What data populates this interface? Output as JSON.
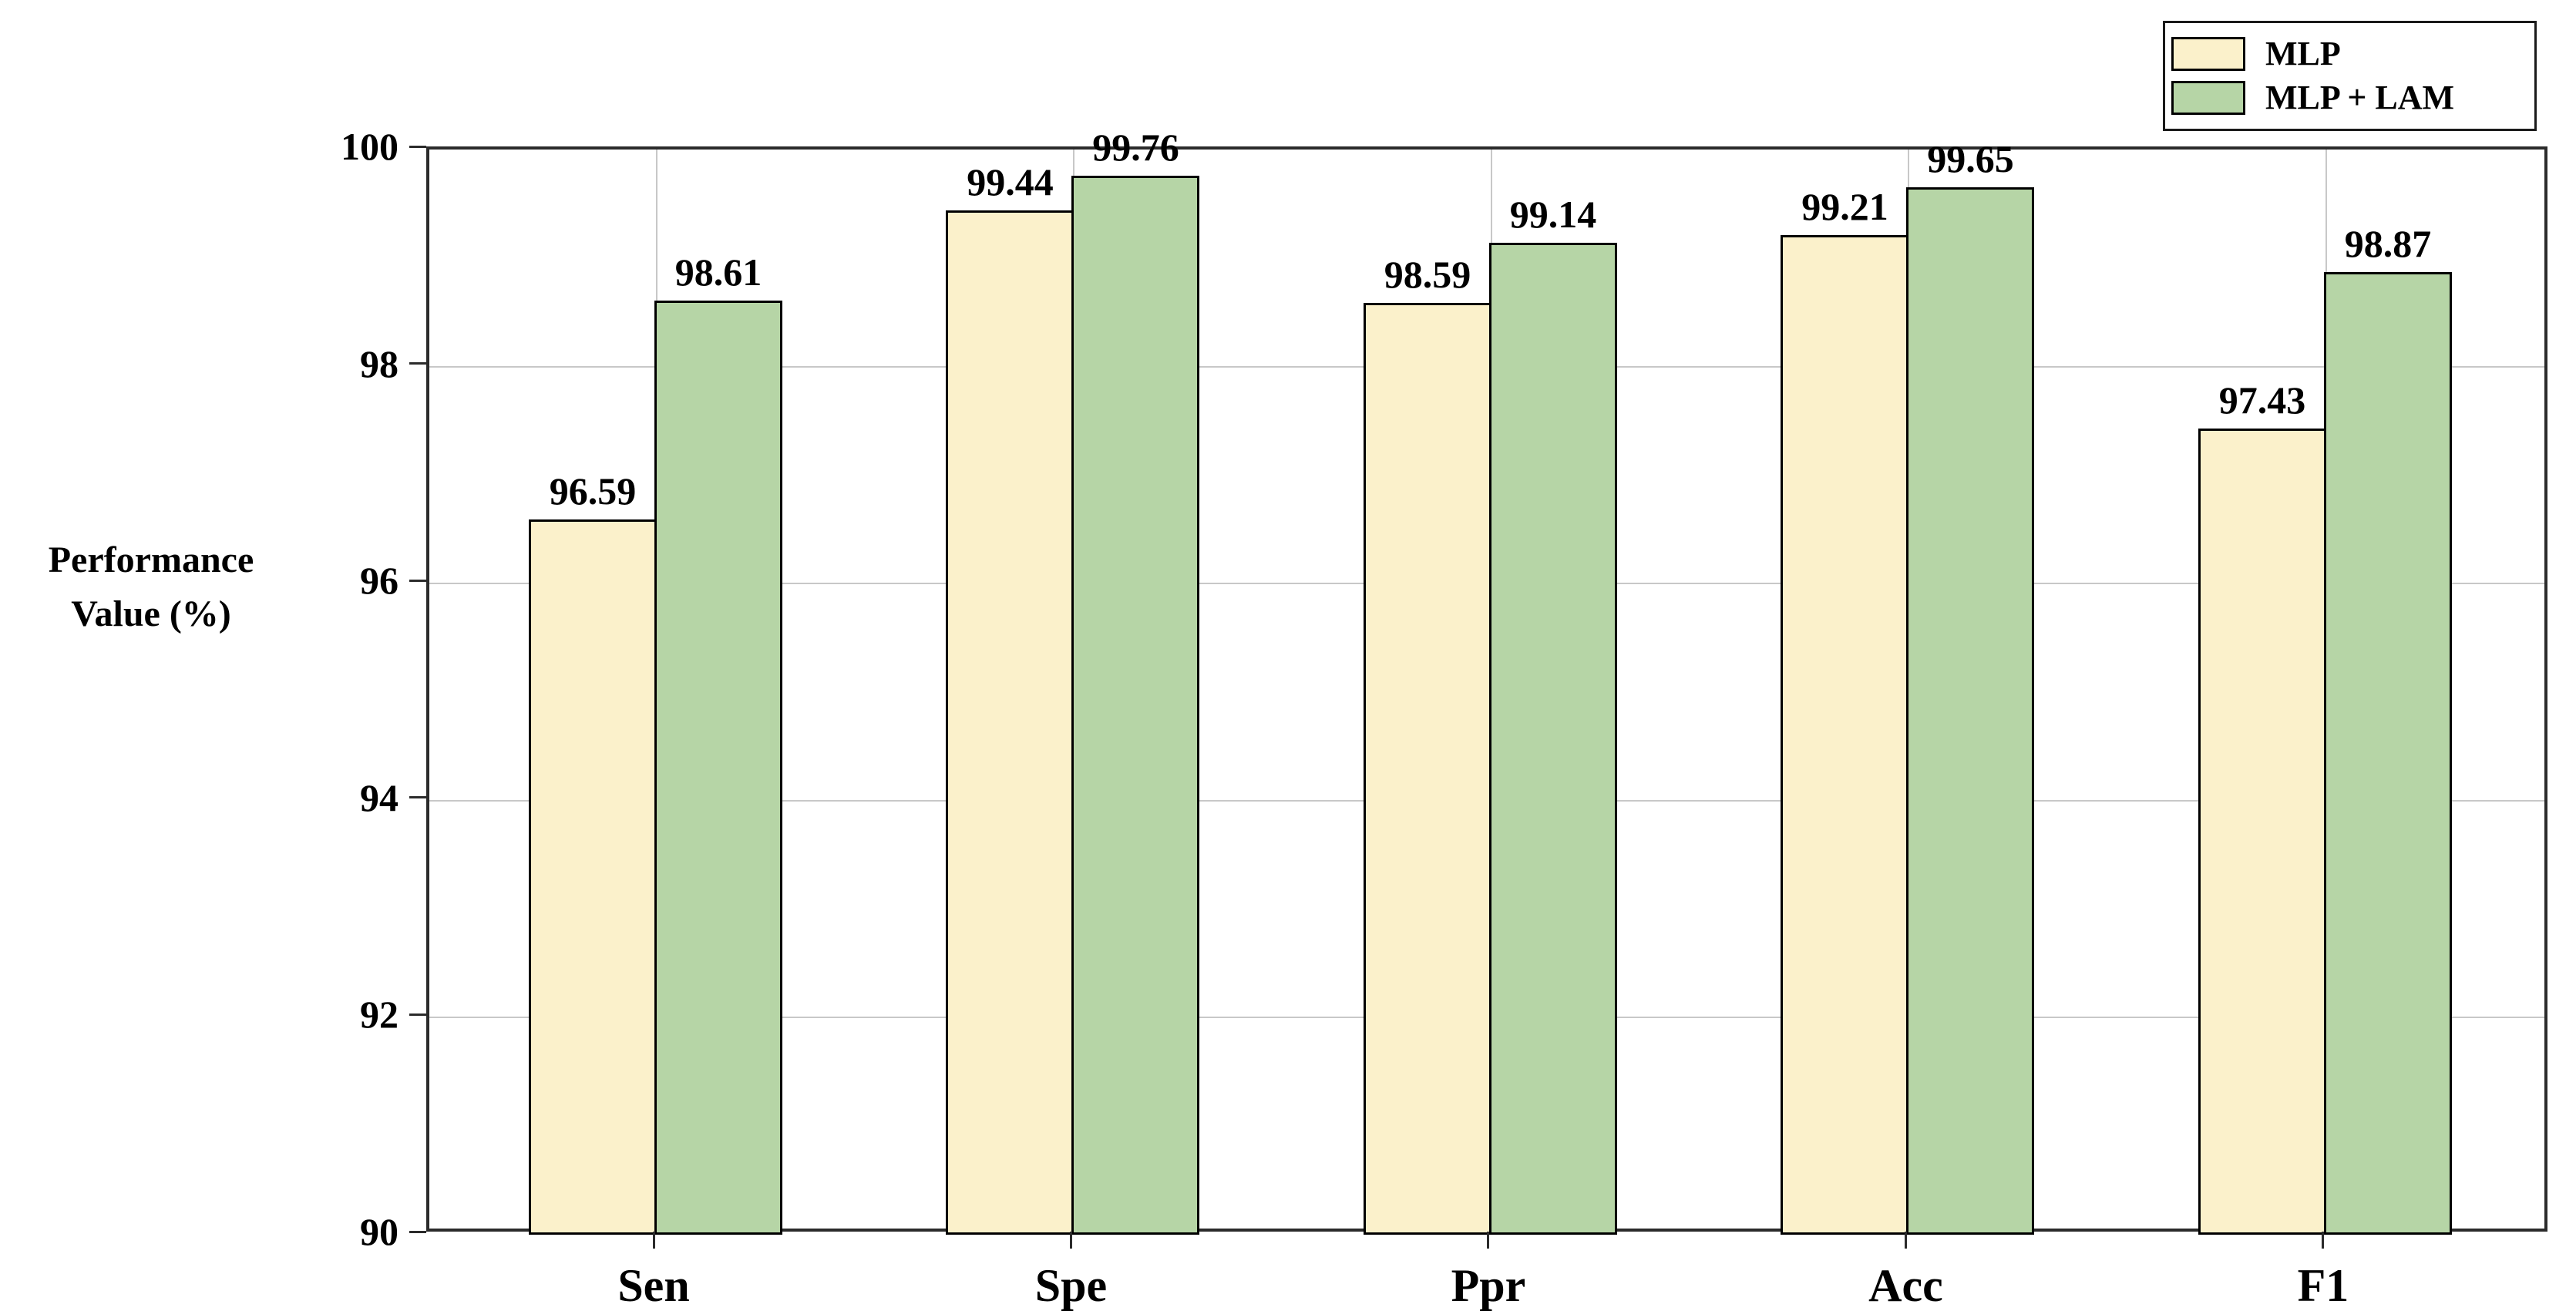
{
  "chart_data": {
    "type": "bar",
    "title": "",
    "categories": [
      "Sen",
      "Spe",
      "Ppr",
      "Acc",
      "F1"
    ],
    "series": [
      {
        "name": "MLP",
        "color": "#FBF1CB",
        "values": [
          96.59,
          99.44,
          98.59,
          99.21,
          97.43
        ]
      },
      {
        "name": "MLP + LAM",
        "color": "#B6D5A6",
        "values": [
          98.61,
          99.76,
          99.14,
          99.65,
          98.87
        ]
      }
    ],
    "ylabel_lines": [
      "Performance",
      "Value (%)"
    ],
    "xlabel": "",
    "ylim": [
      90,
      100
    ],
    "yticks": [
      90,
      92,
      94,
      96,
      98,
      100
    ],
    "grid": "on",
    "legend_position": "top-right",
    "colors": {
      "mlp_fill": "#FBF1CB",
      "mlp_lam_fill": "#B6D5A6",
      "bar_edge": "#000000",
      "gridline": "#c8c8c8",
      "spine": "#2b2b2b",
      "text": "#000000",
      "background": "#ffffff"
    }
  }
}
